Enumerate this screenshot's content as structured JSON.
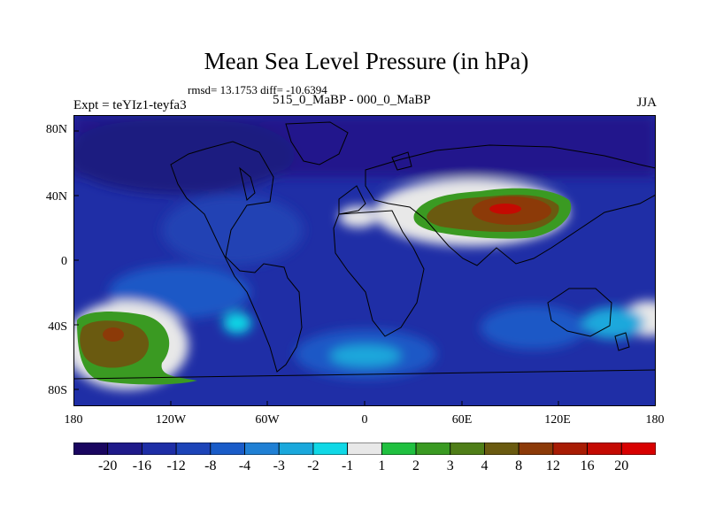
{
  "title": "Mean Sea Level Pressure (in hPa)",
  "stats": "rmsd= 13.1753 diff= -10.6394",
  "experiment": "Expt = teYIz1-teyfa3",
  "comparison": "515_0_MaBP - 000_0_MaBP",
  "season": "JJA",
  "lat_labels": [
    "80N",
    "40N",
    "0",
    "40S",
    "80S"
  ],
  "lon_labels": [
    "180",
    "120W",
    "60W",
    "0",
    "60E",
    "120E",
    "180"
  ],
  "colorbar": {
    "labels": [
      "-20",
      "-16",
      "-12",
      "-8",
      "-4",
      "-3",
      "-2",
      "-1",
      "1",
      "2",
      "3",
      "4",
      "8",
      "12",
      "16",
      "20"
    ],
    "colors": [
      "#1a0660",
      "#1f1a8a",
      "#1e2ea6",
      "#1d44b8",
      "#1a5cc8",
      "#2080d4",
      "#1aa8dc",
      "#10d8e6",
      "#e8e8e8",
      "#20c040",
      "#3a9a22",
      "#4f7e18",
      "#6a5a10",
      "#8c3a08",
      "#a81c04",
      "#c40a02",
      "#d80000"
    ]
  }
}
